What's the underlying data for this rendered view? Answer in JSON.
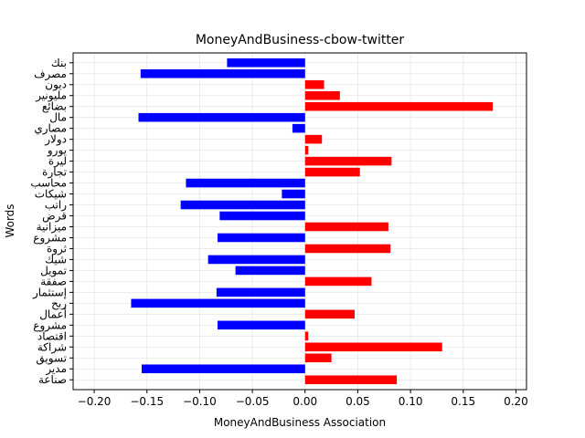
{
  "chart_data": {
    "type": "bar",
    "orientation": "horizontal",
    "title": "MoneyAndBusiness-cbow-twitter",
    "xlabel": "MoneyAndBusiness Association",
    "ylabel": "Words",
    "xlim": [
      -0.22,
      0.21
    ],
    "xticks": [
      -0.2,
      -0.15,
      -0.1,
      -0.05,
      0.0,
      0.05,
      0.1,
      0.15,
      0.2
    ],
    "xtick_labels": [
      "−0.20",
      "−0.15",
      "−0.10",
      "−0.05",
      "0.00",
      "0.05",
      "0.10",
      "0.15",
      "0.20"
    ],
    "grid": true,
    "colors": {
      "positive": "#ff0000",
      "negative": "#0000ff"
    },
    "categories": [
      "صناعة",
      "مدير",
      "تسويق",
      "شراكة",
      "اقتصاد",
      "مشروع",
      "أعمال",
      "ربح",
      "إستثمار",
      "صفقة",
      "تمويل",
      "شيك",
      "ثروة",
      "مشروع",
      "ميزانية",
      "قرض",
      "راتب",
      "شيكات",
      "محاسب",
      "تجارة",
      "ليرة",
      "يورو",
      "دولار",
      "مصاري",
      "مال",
      "بضائع",
      "مليونير",
      "ديون",
      "مصرف",
      "بنك"
    ],
    "values": [
      0.087,
      -0.155,
      0.025,
      0.13,
      0.003,
      -0.083,
      0.047,
      -0.165,
      -0.084,
      0.063,
      -0.066,
      -0.092,
      0.081,
      -0.083,
      0.079,
      -0.081,
      -0.118,
      -0.022,
      -0.113,
      0.052,
      0.082,
      0.003,
      0.016,
      -0.012,
      -0.158,
      0.178,
      0.033,
      0.018,
      -0.156,
      -0.074
    ]
  }
}
